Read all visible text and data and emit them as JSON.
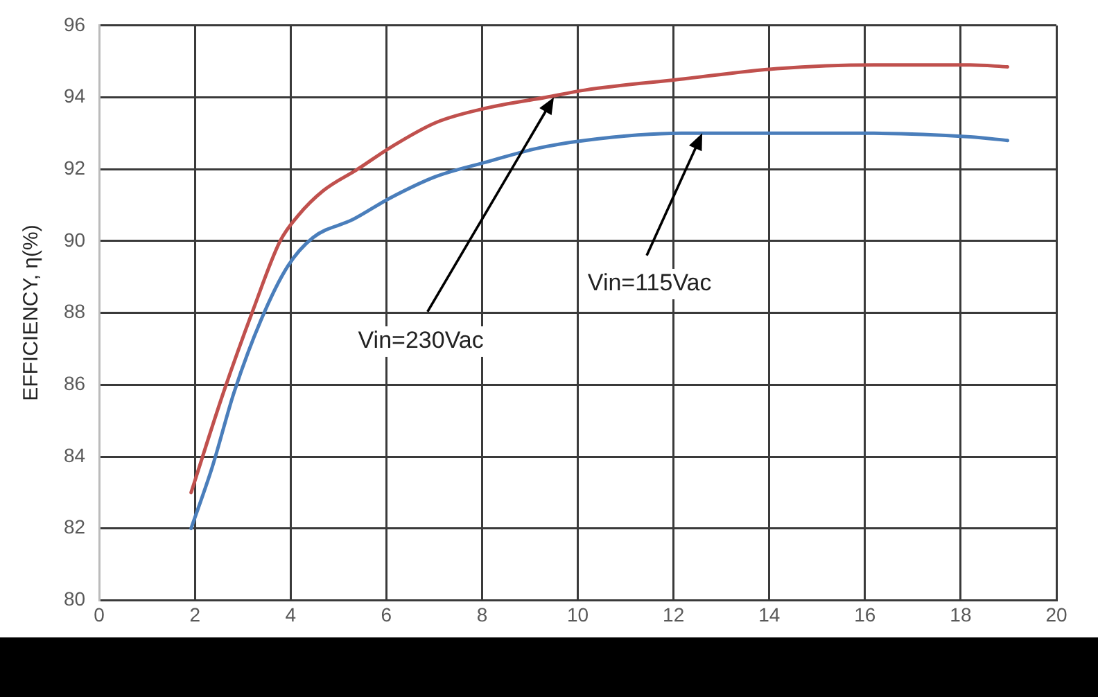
{
  "chart_data": {
    "type": "line",
    "ylabel": "EFFICIENCY, η(%)",
    "series": [
      {
        "color": "#c0504d",
        "x": [
          1.92,
          2.6,
          3.22,
          3.78,
          4.15,
          4.68,
          5.4,
          6.08,
          7.04,
          8.09,
          9.33,
          10.14,
          12.12,
          14.17,
          16.19,
          18.2,
          18.98
        ],
        "values": [
          83.0,
          85.8,
          88.1,
          90.0,
          90.7,
          91.4,
          92.0,
          92.6,
          93.3,
          93.7,
          94.0,
          94.2,
          94.5,
          94.8,
          94.9,
          94.9,
          94.85
        ]
      },
      {
        "color": "#4a7ebb",
        "x": [
          1.92,
          2.36,
          2.82,
          3.38,
          3.94,
          4.47,
          5.3,
          6.08,
          7.04,
          8.09,
          9.12,
          10.14,
          12.16,
          14.17,
          16.19,
          18.2,
          18.98
        ],
        "values": [
          82.0,
          83.7,
          85.8,
          87.8,
          89.3,
          90.1,
          90.6,
          91.2,
          91.8,
          92.2,
          92.57,
          92.8,
          93.0,
          93.0,
          93.0,
          92.9,
          92.8
        ]
      }
    ],
    "xlim": [
      0,
      20
    ],
    "xticks": [
      0,
      2,
      4,
      6,
      8,
      10,
      12,
      14,
      16,
      18,
      20
    ],
    "ylim": [
      80,
      96
    ],
    "yticks": [
      80,
      82,
      84,
      86,
      88,
      90,
      92,
      94,
      96
    ],
    "grid": true,
    "legend": false,
    "marker": "none",
    "line_style": "solid",
    "annotations": [
      {
        "text": "Vin=230Vac",
        "x": 9.5,
        "y": 94.0
      },
      {
        "text": "Vin=115Vac",
        "x": 12.6,
        "y": 93.0
      }
    ]
  }
}
